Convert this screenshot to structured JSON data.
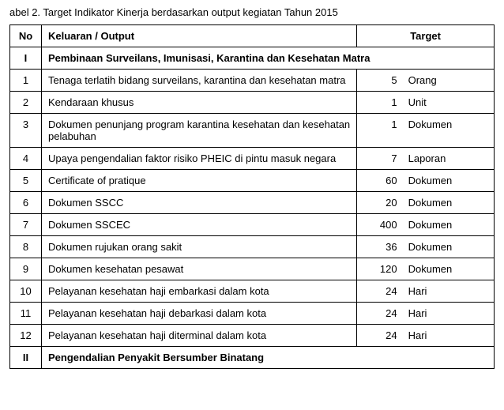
{
  "caption": "abel 2.  Target Indikator Kinerja berdasarkan output kegiatan Tahun 2015",
  "headers": {
    "no": "No",
    "output": "Keluaran / Output",
    "target": "Target"
  },
  "sections": [
    {
      "roman": "I",
      "title": "Pembinaan Surveilans, Imunisasi, Karantina dan Kesehatan Matra",
      "rows": [
        {
          "no": "1",
          "output": "Tenaga terlatih bidang surveilans, karantina dan kesehatan matra",
          "target_num": "5",
          "target_unit": "Orang",
          "justify": true
        },
        {
          "no": "2",
          "output": "Kendaraan khusus",
          "target_num": "1",
          "target_unit": "Unit"
        },
        {
          "no": "3",
          "output": "Dokumen penunjang program karantina kesehatan dan kesehatan pelabuhan",
          "target_num": "1",
          "target_unit": "Dokumen",
          "justify": true
        },
        {
          "no": "4",
          "output": "Upaya pengendalian faktor risiko PHEIC di pintu masuk negara",
          "target_num": "7",
          "target_unit": "Laporan",
          "justify": true
        },
        {
          "no": "5",
          "output": "Certificate of pratique",
          "target_num": "60",
          "target_unit": "Dokumen"
        },
        {
          "no": "6",
          "output": "Dokumen SSCC",
          "target_num": "20",
          "target_unit": "Dokumen"
        },
        {
          "no": "7",
          "output": "Dokumen SSCEC",
          "target_num": "400",
          "target_unit": "Dokumen"
        },
        {
          "no": "8",
          "output": "Dokumen rujukan orang sakit",
          "target_num": "36",
          "target_unit": "Dokumen"
        },
        {
          "no": "9",
          "output": "Dokumen kesehatan pesawat",
          "target_num": "120",
          "target_unit": "Dokumen"
        },
        {
          "no": "10",
          "output": "Pelayanan kesehatan haji embarkasi dalam kota",
          "target_num": "24",
          "target_unit": "Hari"
        },
        {
          "no": "11",
          "output": "Pelayanan kesehatan haji debarkasi dalam kota",
          "target_num": "24",
          "target_unit": "Hari"
        },
        {
          "no": "12",
          "output": "Pelayanan kesehatan haji diterminal dalam kota",
          "target_num": "24",
          "target_unit": "Hari"
        }
      ]
    },
    {
      "roman": "II",
      "title": "Pengendalian Penyakit Bersumber Binatang",
      "rows": []
    }
  ]
}
